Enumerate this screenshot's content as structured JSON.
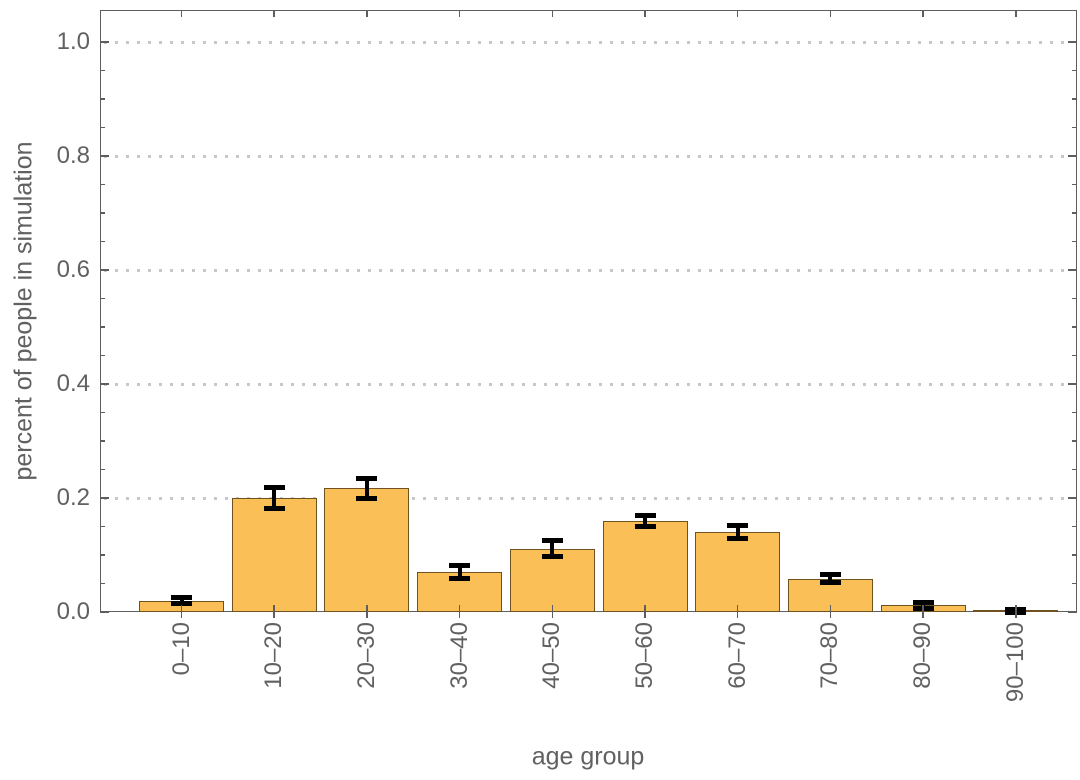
{
  "chart_data": {
    "type": "bar",
    "title": "",
    "xlabel": "age group",
    "ylabel": "percent of people in simulation",
    "categories": [
      "0–10",
      "10–20",
      "20–30",
      "30–40",
      "40–50",
      "50–60",
      "60–70",
      "70–80",
      "80–90",
      "90–100"
    ],
    "series": [
      {
        "name": "percent of people in simulation",
        "values": [
          0.02,
          0.2,
          0.217,
          0.07,
          0.111,
          0.16,
          0.14,
          0.058,
          0.012,
          0.002
        ],
        "errors": [
          0.005,
          0.019,
          0.018,
          0.012,
          0.014,
          0.01,
          0.011,
          0.007,
          0.005,
          0.002
        ]
      }
    ],
    "ylim": [
      0,
      1.056
    ],
    "yticks": [
      0,
      0.2,
      0.4,
      0.6,
      0.8,
      1.0
    ],
    "ytick_labels": [
      "0.0",
      "0.2",
      "0.4",
      "0.6",
      "0.8",
      "1.0"
    ],
    "minor_ytick_step": 0.05,
    "grid": "horizontal dotted lines at major y ticks",
    "legend_position": "none",
    "error_bars": true,
    "frame": "full box with mirrored ticks",
    "colors": {
      "bar_fill": "#FBBF57",
      "bar_edge": "#6E521F",
      "error_bar": "#000000",
      "frame": "#5E5E5E",
      "grid": "#C8C8C8",
      "labels": "#616161",
      "background": "#FFFFFF"
    }
  }
}
